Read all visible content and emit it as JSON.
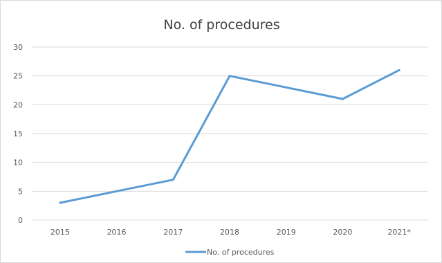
{
  "chart_data": {
    "type": "line",
    "title": "No. of procedures",
    "categories": [
      "2015",
      "2016",
      "2017",
      "2018",
      "2019",
      "2020",
      "2021*"
    ],
    "series": [
      {
        "name": "No. of procedures",
        "values": [
          3,
          5,
          7,
          25,
          23,
          21,
          26
        ]
      }
    ],
    "ylim": [
      0,
      30
    ],
    "yticks": [
      0,
      5,
      10,
      15,
      20,
      25,
      30
    ],
    "grid": true,
    "legend": "bottom",
    "colors": {
      "line": "#5b9bd5",
      "grid": "#d9d9d9",
      "text": "#595959"
    }
  }
}
